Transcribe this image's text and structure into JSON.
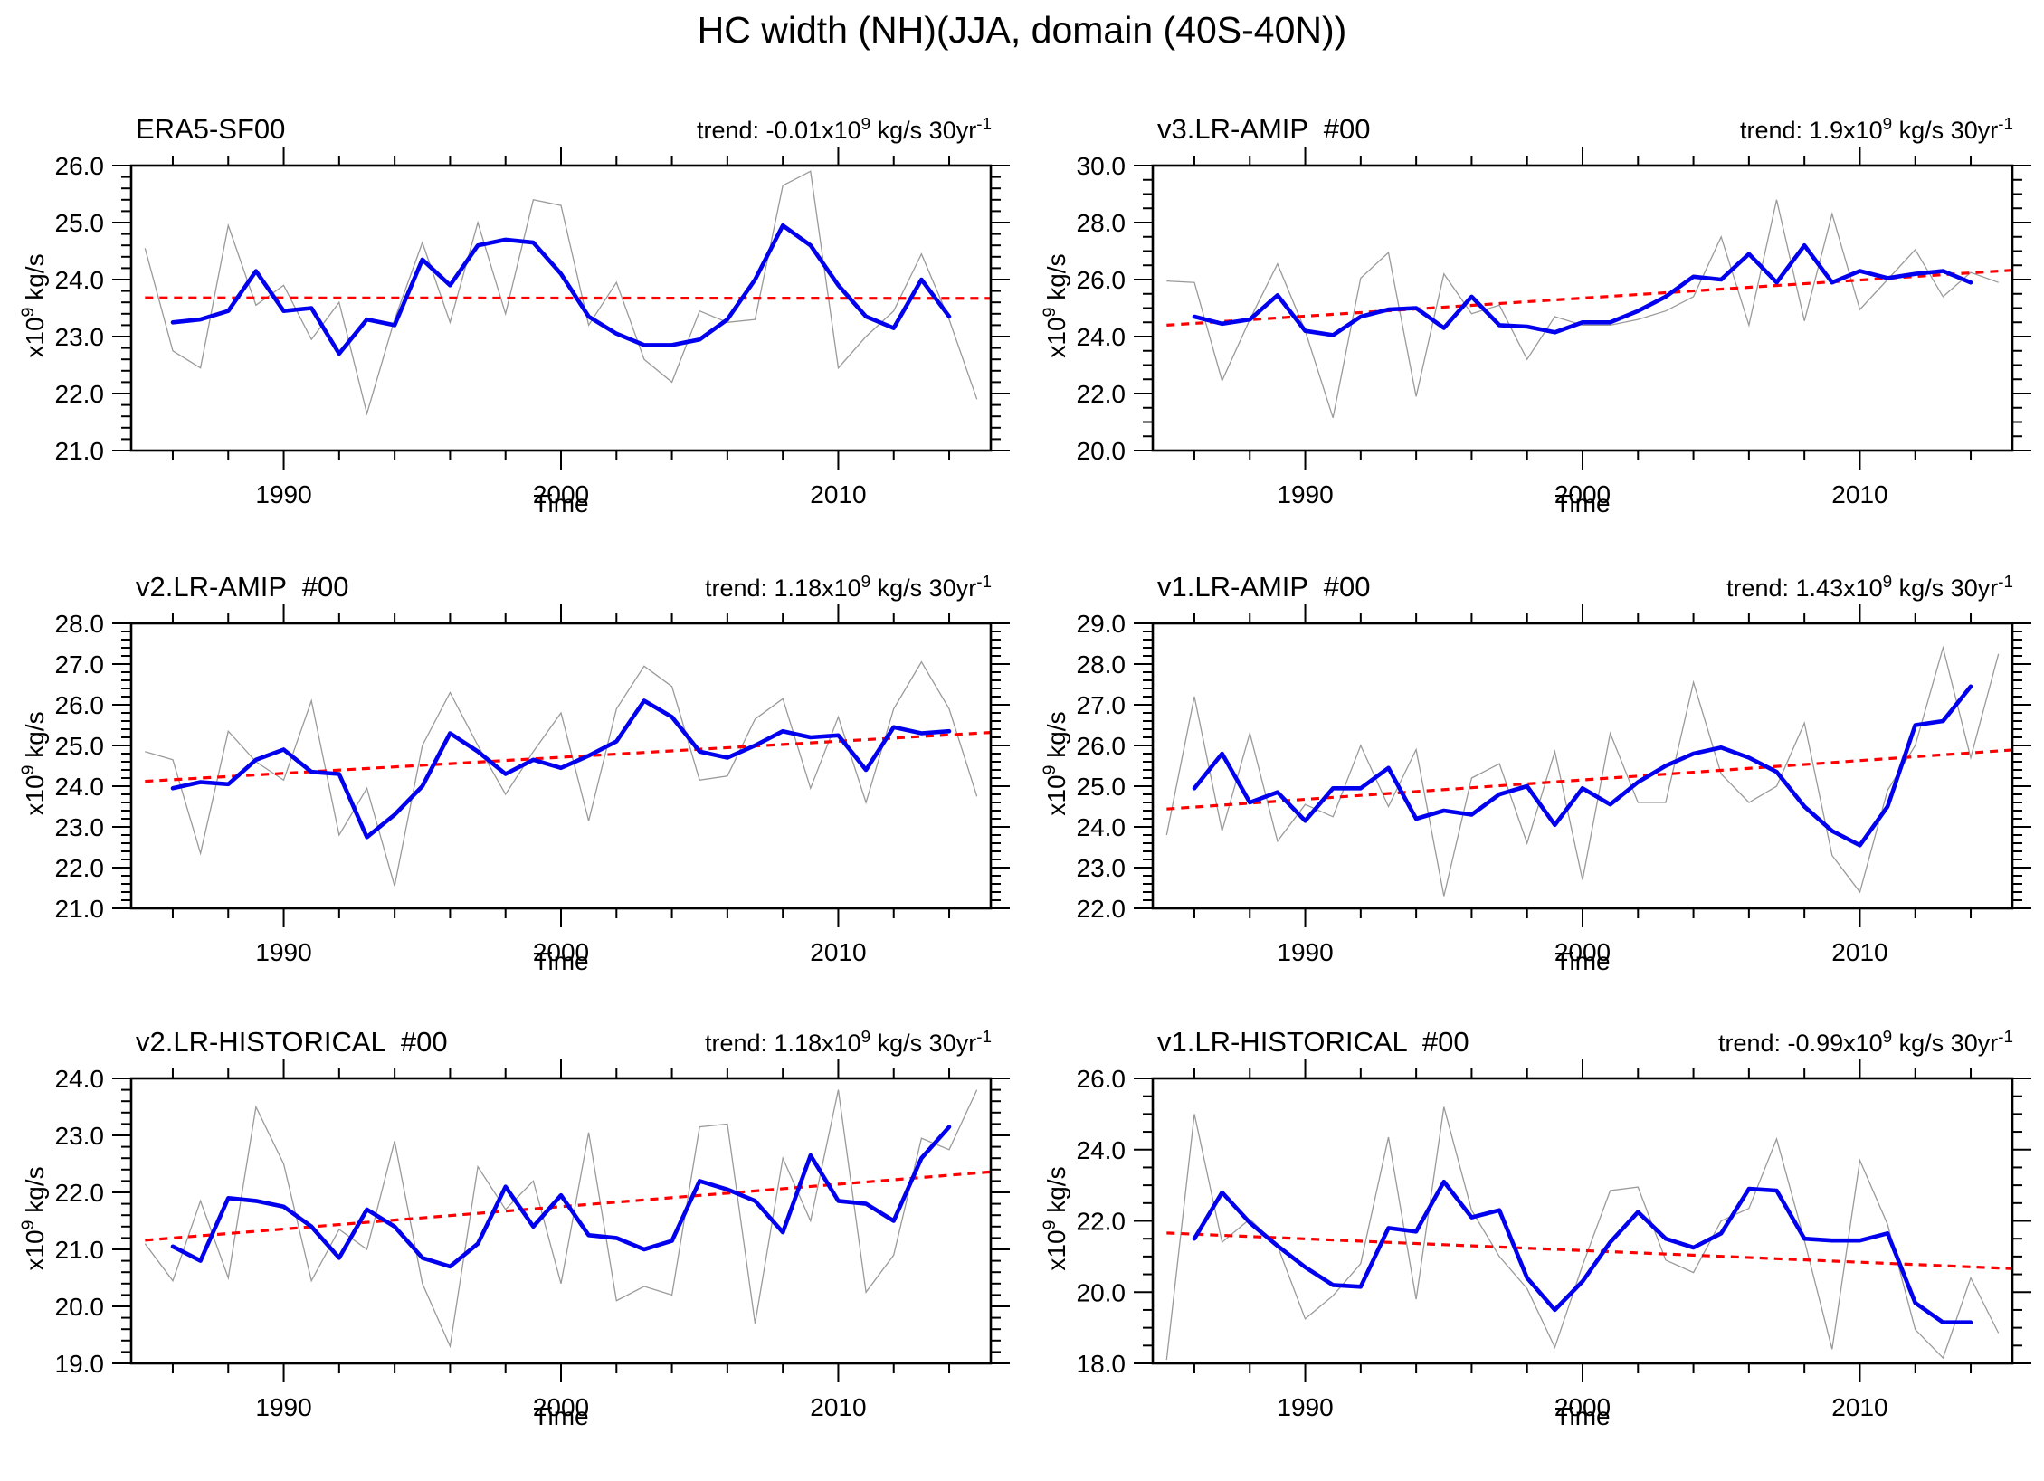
{
  "figure_title": "HC width (NH)(JJA, domain (40S-40N))",
  "colors": {
    "annual_line": "#9a9a9a",
    "smoothed_line": "#0000ee",
    "trend_line": "#ff0000",
    "frame": "#000000",
    "background": "#ffffff"
  },
  "chart_data": [
    {
      "type": "line",
      "title": "ERA5-SF00",
      "trend_parts": {
        "pre": "trend: -0.01x10",
        "sup1": "9",
        "mid": " kg/s 30yr",
        "sup2": "-1"
      },
      "ylabel_parts": {
        "pre": "x10",
        "sup": "9",
        "suffix": " kg/s"
      },
      "xlabel": "Time",
      "x_range": [
        1984.5,
        2015.5
      ],
      "ylim": [
        21.0,
        26.0
      ],
      "ytick_major": 1.0,
      "ytick_minor": 0.2,
      "xticks_major": [
        1990,
        2000,
        2010
      ],
      "xtick_minor_step": 2,
      "annual_start_year": 1985,
      "annual": [
        24.55,
        22.75,
        22.45,
        24.95,
        23.55,
        23.9,
        22.95,
        23.6,
        21.65,
        23.3,
        24.65,
        23.25,
        25.0,
        23.4,
        25.4,
        25.3,
        23.2,
        23.95,
        22.6,
        22.2,
        23.45,
        23.25,
        23.3,
        25.65,
        25.9,
        22.45,
        23.0,
        23.45,
        24.45,
        23.3,
        21.9
      ],
      "smoothed_start_year": 1986,
      "smoothed": [
        23.25,
        23.3,
        23.45,
        24.15,
        23.45,
        23.5,
        22.7,
        23.3,
        23.2,
        24.35,
        23.9,
        24.6,
        24.7,
        24.65,
        24.1,
        23.35,
        23.05,
        22.85,
        22.85,
        22.95,
        23.3,
        24.0,
        24.95,
        24.6,
        23.9,
        23.35,
        23.15,
        24.0,
        23.35
      ],
      "trend_line": {
        "x": [
          1985.0,
          2015.5
        ],
        "y": [
          23.68,
          23.67
        ]
      }
    },
    {
      "type": "line",
      "title": "v3.LR-AMIP  #00",
      "trend_parts": {
        "pre": "trend: 1.9x10",
        "sup1": "9",
        "mid": " kg/s 30yr",
        "sup2": "-1"
      },
      "ylabel_parts": {
        "pre": "x10",
        "sup": "9",
        "suffix": " kg/s"
      },
      "xlabel": "Time",
      "x_range": [
        1984.5,
        2015.5
      ],
      "ylim": [
        20.0,
        30.0
      ],
      "ytick_major": 2.0,
      "ytick_minor": 0.5,
      "xticks_major": [
        1990,
        2000,
        2010
      ],
      "xtick_minor_step": 2,
      "annual_start_year": 1985,
      "annual": [
        25.95,
        25.9,
        22.45,
        24.6,
        26.55,
        24.2,
        21.15,
        26.05,
        26.95,
        21.9,
        26.2,
        24.8,
        25.1,
        23.2,
        24.7,
        24.4,
        24.4,
        24.6,
        24.9,
        25.4,
        27.5,
        24.4,
        28.8,
        24.55,
        28.3,
        24.95,
        26.0,
        27.05,
        25.4,
        26.25,
        25.9
      ],
      "smoothed_start_year": 1986,
      "smoothed": [
        24.7,
        24.45,
        24.6,
        25.45,
        24.2,
        24.05,
        24.7,
        24.95,
        25.0,
        24.3,
        25.4,
        24.4,
        24.35,
        24.15,
        24.5,
        24.5,
        24.9,
        25.4,
        26.1,
        26.0,
        26.9,
        25.9,
        27.2,
        25.9,
        26.3,
        26.05,
        26.2,
        26.3,
        25.9
      ],
      "trend_line": {
        "x": [
          1985.0,
          2015.5
        ],
        "y": [
          24.4,
          26.33
        ]
      }
    },
    {
      "type": "line",
      "title": "v2.LR-AMIP  #00",
      "trend_parts": {
        "pre": "trend: 1.18x10",
        "sup1": "9",
        "mid": " kg/s 30yr",
        "sup2": "-1"
      },
      "ylabel_parts": {
        "pre": "x10",
        "sup": "9",
        "suffix": " kg/s"
      },
      "xlabel": "Time",
      "x_range": [
        1984.5,
        2015.5
      ],
      "ylim": [
        21.0,
        28.0
      ],
      "ytick_major": 1.0,
      "ytick_minor": 0.2,
      "xticks_major": [
        1990,
        2000,
        2010
      ],
      "xtick_minor_step": 2,
      "annual_start_year": 1985,
      "annual": [
        24.85,
        24.65,
        22.35,
        25.35,
        24.6,
        24.15,
        26.1,
        22.8,
        23.95,
        21.55,
        25.0,
        26.3,
        25.0,
        23.8,
        24.85,
        25.8,
        23.15,
        25.9,
        26.95,
        26.45,
        24.15,
        24.25,
        25.65,
        26.15,
        23.95,
        25.7,
        23.6,
        25.9,
        27.05,
        25.9,
        23.75
      ],
      "smoothed_start_year": 1986,
      "smoothed": [
        23.95,
        24.1,
        24.05,
        24.65,
        24.9,
        24.35,
        24.3,
        22.75,
        23.3,
        24.0,
        25.3,
        24.85,
        24.3,
        24.65,
        24.45,
        24.75,
        25.1,
        26.1,
        25.7,
        24.85,
        24.7,
        25.0,
        25.35,
        25.2,
        25.25,
        24.4,
        25.45,
        25.3,
        25.35
      ],
      "trend_line": {
        "x": [
          1985.0,
          2015.5
        ],
        "y": [
          24.12,
          25.32
        ]
      }
    },
    {
      "type": "line",
      "title": "v1.LR-AMIP  #00",
      "trend_parts": {
        "pre": "trend: 1.43x10",
        "sup1": "9",
        "mid": " kg/s 30yr",
        "sup2": "-1"
      },
      "ylabel_parts": {
        "pre": "x10",
        "sup": "9",
        "suffix": " kg/s"
      },
      "xlabel": "Time",
      "x_range": [
        1984.5,
        2015.5
      ],
      "ylim": [
        22.0,
        29.0
      ],
      "ytick_major": 1.0,
      "ytick_minor": 0.2,
      "xticks_major": [
        1990,
        2000,
        2010
      ],
      "xtick_minor_step": 2,
      "annual_start_year": 1985,
      "annual": [
        23.8,
        27.2,
        23.9,
        26.3,
        23.65,
        24.55,
        24.25,
        26.0,
        24.5,
        25.9,
        22.3,
        25.2,
        25.55,
        23.6,
        25.85,
        22.7,
        26.3,
        24.6,
        24.6,
        27.55,
        25.3,
        24.6,
        25.0,
        26.55,
        23.3,
        22.4,
        24.9,
        26.0,
        28.4,
        25.7,
        28.25
      ],
      "smoothed_start_year": 1986,
      "smoothed": [
        24.95,
        25.8,
        24.6,
        24.85,
        24.15,
        24.95,
        24.95,
        25.45,
        24.2,
        24.4,
        24.3,
        24.8,
        25.0,
        24.05,
        24.95,
        24.55,
        25.1,
        25.5,
        25.8,
        25.95,
        25.7,
        25.35,
        24.5,
        23.9,
        23.55,
        24.5,
        26.5,
        26.6,
        27.45
      ],
      "trend_line": {
        "x": [
          1985.0,
          2015.5
        ],
        "y": [
          24.44,
          25.89
        ]
      }
    },
    {
      "type": "line",
      "title": "v2.LR-HISTORICAL  #00",
      "trend_parts": {
        "pre": "trend: 1.18x10",
        "sup1": "9",
        "mid": " kg/s 30yr",
        "sup2": "-1"
      },
      "ylabel_parts": {
        "pre": "x10",
        "sup": "9",
        "suffix": " kg/s"
      },
      "xlabel": "Time",
      "x_range": [
        1984.5,
        2015.5
      ],
      "ylim": [
        19.0,
        24.0
      ],
      "ytick_major": 1.0,
      "ytick_minor": 0.2,
      "xticks_major": [
        1990,
        2000,
        2010
      ],
      "xtick_minor_step": 2,
      "annual_start_year": 1985,
      "annual": [
        21.1,
        20.45,
        21.85,
        20.5,
        23.5,
        22.5,
        20.45,
        21.35,
        21.0,
        22.9,
        20.4,
        19.3,
        22.45,
        21.7,
        22.2,
        20.4,
        23.05,
        20.1,
        20.35,
        20.2,
        23.15,
        23.2,
        19.7,
        22.6,
        21.5,
        23.8,
        20.25,
        20.9,
        22.95,
        22.75,
        23.8
      ],
      "smoothed_start_year": 1986,
      "smoothed": [
        21.05,
        20.8,
        21.9,
        21.85,
        21.75,
        21.4,
        20.85,
        21.7,
        21.4,
        20.85,
        20.7,
        21.1,
        22.1,
        21.4,
        21.95,
        21.25,
        21.2,
        21.0,
        21.15,
        22.2,
        22.05,
        21.85,
        21.3,
        22.65,
        21.85,
        21.8,
        21.5,
        22.6,
        23.15
      ],
      "trend_line": {
        "x": [
          1985.0,
          2015.5
        ],
        "y": [
          21.16,
          22.36
        ]
      }
    },
    {
      "type": "line",
      "title": "v1.LR-HISTORICAL  #00",
      "trend_parts": {
        "pre": "trend: -0.99x10",
        "sup1": "9",
        "mid": " kg/s 30yr",
        "sup2": "-1"
      },
      "ylabel_parts": {
        "pre": "x10",
        "sup": "9",
        "suffix": " kg/s"
      },
      "xlabel": "Time",
      "x_range": [
        1984.5,
        2015.5
      ],
      "ylim": [
        18.0,
        26.0
      ],
      "ytick_major": 2.0,
      "ytick_minor": 0.5,
      "xticks_major": [
        1990,
        2000,
        2010
      ],
      "xtick_minor_step": 2,
      "annual_start_year": 1985,
      "annual": [
        18.1,
        25.0,
        21.4,
        22.05,
        21.3,
        19.25,
        19.9,
        20.8,
        24.35,
        19.8,
        25.2,
        22.3,
        21.0,
        20.1,
        18.45,
        20.75,
        22.85,
        22.95,
        20.9,
        20.55,
        22.0,
        22.35,
        24.3,
        21.45,
        18.4,
        23.7,
        21.9,
        18.95,
        18.15,
        20.4,
        18.85
      ],
      "smoothed_start_year": 1986,
      "smoothed": [
        21.5,
        22.8,
        21.95,
        21.3,
        20.7,
        20.2,
        20.15,
        21.8,
        21.7,
        23.1,
        22.1,
        22.3,
        20.4,
        19.5,
        20.3,
        21.4,
        22.25,
        21.5,
        21.25,
        21.65,
        22.9,
        22.85,
        21.5,
        21.45,
        21.45,
        21.65,
        19.7,
        19.15,
        19.15
      ],
      "trend_line": {
        "x": [
          1985.0,
          2015.5
        ],
        "y": [
          21.66,
          20.66
        ]
      }
    }
  ]
}
